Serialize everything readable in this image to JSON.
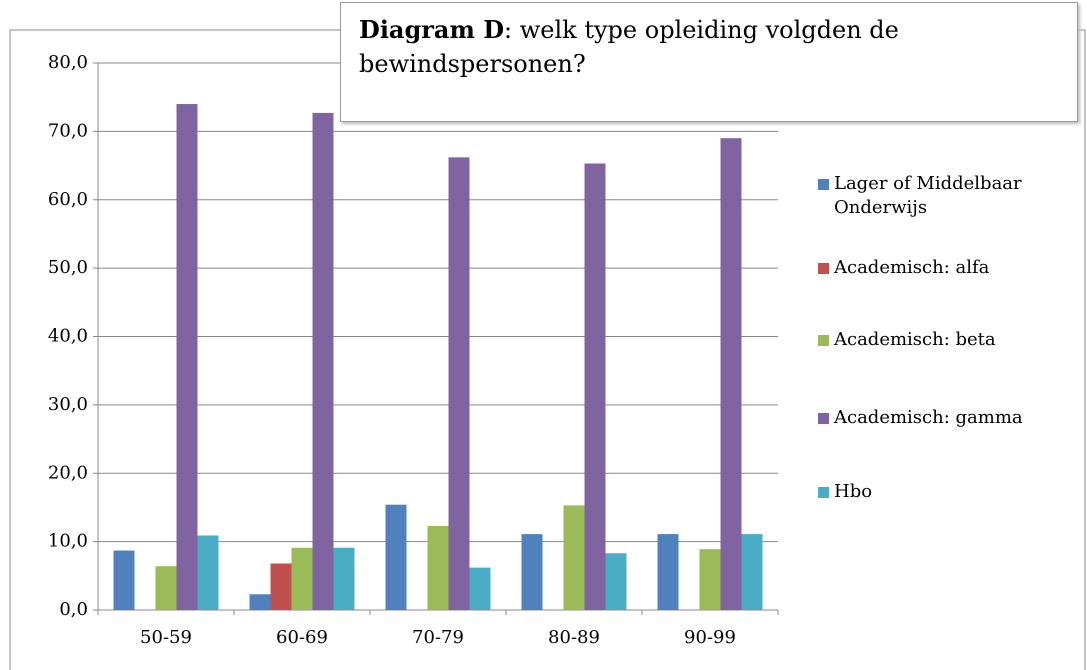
{
  "chart_data": {
    "type": "bar",
    "title": {
      "bold": "Diagram D",
      "rest": ": welk type opleiding volgden de bewindspersonen?"
    },
    "categories": [
      "50-59",
      "60-69",
      "70-79",
      "80-89",
      "90-99"
    ],
    "series": [
      {
        "name": "Lager of Middelbaar Onderwijs",
        "color": "#4f81bd",
        "values": [
          8.7,
          2.3,
          15.4,
          11.1,
          11.1
        ]
      },
      {
        "name": "Academisch: alfa",
        "color": "#c0504d",
        "values": [
          0,
          6.8,
          0,
          0,
          0
        ]
      },
      {
        "name": "Academisch: beta",
        "color": "#9bbb59",
        "values": [
          6.4,
          9.1,
          12.3,
          15.3,
          8.9
        ]
      },
      {
        "name": "Academisch: gamma",
        "color": "#8064a2",
        "values": [
          74.0,
          72.7,
          66.2,
          65.3,
          69.0
        ]
      },
      {
        "name": "Hbo",
        "color": "#4bacc6",
        "values": [
          10.9,
          9.1,
          6.2,
          8.3,
          11.1
        ]
      }
    ],
    "ylim": [
      0,
      80
    ],
    "yticks": [
      {
        "value": 0,
        "label": "0,0"
      },
      {
        "value": 10,
        "label": "10,0"
      },
      {
        "value": 20,
        "label": "20,0"
      },
      {
        "value": 30,
        "label": "30,0"
      },
      {
        "value": 40,
        "label": "40,0"
      },
      {
        "value": 50,
        "label": "50,0"
      },
      {
        "value": 60,
        "label": "60,0"
      },
      {
        "value": 70,
        "label": "70,0"
      },
      {
        "value": 80,
        "label": "80,0"
      }
    ],
    "grid": true,
    "legend": "right"
  }
}
